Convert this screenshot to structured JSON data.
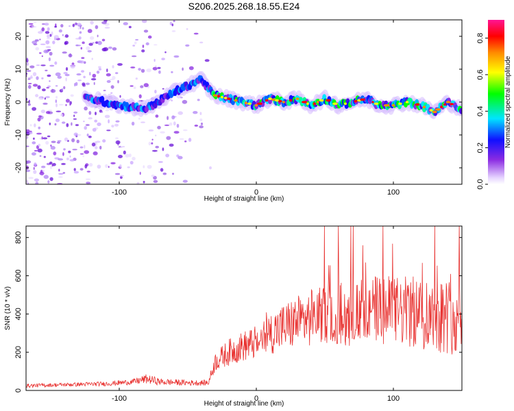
{
  "title": "S206.2025.268.18.55.E24",
  "chart_data": [
    {
      "type": "heatmap",
      "name": "spectrogram",
      "xlabel": "Height of straight line (km)",
      "ylabel": "Frequency (Hz)",
      "xlim": [
        -168,
        150
      ],
      "ylim": [
        -25,
        25
      ],
      "xticks": [
        -100,
        0,
        100
      ],
      "yticks": [
        -20,
        -10,
        0,
        10,
        20
      ],
      "colorbar": {
        "label": "Normalized spectral amplitude",
        "range": [
          0,
          0.9
        ],
        "ticks": [
          0.0,
          0.2,
          0.4,
          0.6,
          0.8
        ],
        "colors": [
          "#f4e8ff",
          "#8a2be2",
          "#1010ff",
          "#00e5ff",
          "#00ff00",
          "#ffff00",
          "#ff8c00",
          "#ff0000",
          "#ff1493"
        ]
      },
      "ridge": {
        "x": [
          -120,
          -100,
          -80,
          -60,
          -45,
          -40,
          -35,
          -30,
          -20,
          -10,
          0,
          10,
          20,
          30,
          40,
          50,
          60,
          70,
          80,
          90,
          100,
          110,
          120,
          130,
          140,
          148
        ],
        "y": [
          1,
          -1,
          -2,
          3,
          6,
          7,
          4,
          2,
          1,
          0,
          -1,
          1,
          0,
          1,
          -1,
          1,
          -1,
          0,
          1,
          -1,
          -1,
          0,
          -1,
          -3,
          0,
          -2
        ]
      }
    },
    {
      "type": "line",
      "name": "snr",
      "xlabel": "Height of straight line (km)",
      "ylabel": "SNR (10 * v/v)",
      "xlim": [
        -168,
        150
      ],
      "ylim": [
        0,
        860
      ],
      "xticks": [
        -100,
        0,
        100
      ],
      "yticks": [
        0,
        200,
        400,
        600,
        800
      ],
      "series": [
        {
          "name": "SNR",
          "color": "#e8312f",
          "envelope": {
            "x": [
              -168,
              -140,
              -110,
              -90,
              -80,
              -70,
              -50,
              -35,
              -30,
              -20,
              -10,
              0,
              10,
              20,
              30,
              50,
              70,
              90,
              110,
              130,
              150
            ],
            "mean": [
              25,
              30,
              35,
              45,
              60,
              45,
              40,
              40,
              150,
              200,
              230,
              250,
              300,
              330,
              360,
              400,
              400,
              420,
              410,
              400,
              380
            ],
            "spread": [
              10,
              10,
              12,
              15,
              25,
              18,
              15,
              15,
              50,
              70,
              80,
              90,
              110,
              130,
              140,
              160,
              170,
              180,
              190,
              200,
              200
            ]
          }
        }
      ]
    }
  ]
}
